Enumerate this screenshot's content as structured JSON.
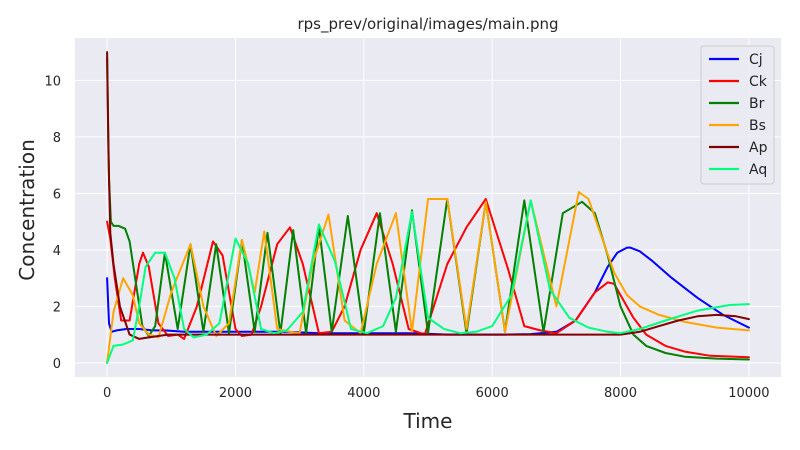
{
  "chart_data": {
    "type": "line",
    "title": "rps_prev/original/images/main.png",
    "xlabel": "Time",
    "ylabel": "Concentration",
    "xlim": [
      -500,
      10500
    ],
    "ylim": [
      -0.5,
      11.5
    ],
    "xticks": [
      0,
      2000,
      4000,
      6000,
      8000,
      10000
    ],
    "yticks": [
      0,
      2,
      4,
      6,
      8,
      10
    ],
    "grid": true,
    "legend_position": "top-right",
    "series": [
      {
        "name": "Cj",
        "color": "#0000ff",
        "x": [
          0,
          30,
          70,
          150,
          300,
          500,
          700,
          900,
          1200,
          1600,
          2000,
          2400,
          2800,
          3300,
          3800,
          4300,
          4800,
          5300,
          5800,
          6200,
          6600,
          7000,
          7300,
          7600,
          7800,
          7950,
          8100,
          8150,
          8300,
          8500,
          8800,
          9200,
          9600,
          10000
        ],
        "y": [
          3.0,
          1.4,
          1.1,
          1.15,
          1.2,
          1.2,
          1.15,
          1.15,
          1.1,
          1.1,
          1.1,
          1.1,
          1.1,
          1.05,
          1.05,
          1.05,
          1.05,
          1.0,
          1.0,
          1.0,
          1.02,
          1.1,
          1.5,
          2.5,
          3.4,
          3.9,
          4.08,
          4.08,
          3.95,
          3.6,
          3.0,
          2.3,
          1.7,
          1.25
        ]
      },
      {
        "name": "Ck",
        "color": "#ff0000",
        "x": [
          0,
          50,
          120,
          220,
          350,
          500,
          560,
          650,
          800,
          950,
          1100,
          1200,
          1400,
          1650,
          1800,
          2000,
          2100,
          2250,
          2400,
          2650,
          2850,
          3050,
          3300,
          3500,
          3700,
          3950,
          4200,
          4450,
          4700,
          4950,
          5300,
          5600,
          5900,
          6250,
          6500,
          6750,
          7000,
          7300,
          7600,
          7800,
          7900,
          8000,
          8200,
          8400,
          8700,
          9000,
          9400,
          10000
        ],
        "y": [
          5.0,
          4.4,
          3.0,
          1.5,
          1.5,
          3.5,
          3.9,
          3.4,
          1.4,
          0.95,
          1.0,
          0.85,
          2.0,
          4.3,
          3.8,
          1.2,
          0.95,
          1.0,
          2.0,
          4.2,
          4.8,
          3.5,
          1.05,
          1.1,
          2.0,
          4.0,
          5.3,
          3.5,
          1.2,
          1.0,
          3.5,
          4.8,
          5.8,
          3.3,
          1.3,
          1.15,
          1.05,
          1.5,
          2.5,
          2.85,
          2.8,
          2.4,
          1.6,
          1.0,
          0.6,
          0.4,
          0.25,
          0.2
        ]
      },
      {
        "name": "Br",
        "color": "#008000",
        "x": [
          0,
          30,
          60,
          100,
          180,
          280,
          350,
          450,
          550,
          650,
          750,
          900,
          1100,
          1300,
          1500,
          1700,
          1900,
          2100,
          2300,
          2500,
          2700,
          2900,
          3100,
          3300,
          3500,
          3750,
          4000,
          4250,
          4500,
          4750,
          5000,
          5300,
          5600,
          5900,
          6200,
          6500,
          6800,
          7100,
          7400,
          7600,
          7800,
          8000,
          8200,
          8400,
          8700,
          9000,
          9500,
          10000
        ],
        "y": [
          10.8,
          6.5,
          5.0,
          4.85,
          4.85,
          4.75,
          4.3,
          2.8,
          1.3,
          0.95,
          1.3,
          3.9,
          1.2,
          4.2,
          1.1,
          4.2,
          1.05,
          4.35,
          1.1,
          4.6,
          1.05,
          4.7,
          1.05,
          4.85,
          1.1,
          5.2,
          1.05,
          5.3,
          1.1,
          5.4,
          1.05,
          5.8,
          1.05,
          5.7,
          1.1,
          5.75,
          1.1,
          5.3,
          5.7,
          5.3,
          3.8,
          2.0,
          1.0,
          0.6,
          0.35,
          0.22,
          0.15,
          0.12
        ]
      },
      {
        "name": "Bs",
        "color": "#ffa500",
        "x": [
          0,
          100,
          250,
          400,
          500,
          650,
          800,
          1000,
          1300,
          1500,
          1700,
          1900,
          2100,
          2300,
          2450,
          2650,
          2850,
          3000,
          3200,
          3450,
          3700,
          3950,
          4200,
          4500,
          4750,
          5000,
          5300,
          5600,
          5900,
          6200,
          6600,
          7000,
          7350,
          7500,
          7700,
          7900,
          8100,
          8300,
          8600,
          9000,
          9500,
          10000
        ],
        "y": [
          0.0,
          1.8,
          3.0,
          2.4,
          1.4,
          1.0,
          0.9,
          2.5,
          4.2,
          2.0,
          0.95,
          1.4,
          4.35,
          2.5,
          4.65,
          1.2,
          1.1,
          1.05,
          3.5,
          5.25,
          1.5,
          1.05,
          3.5,
          5.3,
          1.1,
          5.8,
          5.8,
          1.2,
          5.7,
          1.1,
          5.75,
          2.0,
          6.05,
          5.8,
          4.5,
          3.2,
          2.4,
          2.0,
          1.7,
          1.45,
          1.25,
          1.15
        ]
      },
      {
        "name": "Ap",
        "color": "#800000",
        "x": [
          0,
          20,
          50,
          100,
          200,
          350,
          500,
          650,
          800,
          950,
          1100,
          1300,
          1500,
          1700,
          1900,
          2100,
          2300,
          2500,
          2700,
          2900,
          3100,
          3300,
          3500,
          3750,
          4000,
          4250,
          4500,
          4750,
          5000,
          5300,
          5600,
          5900,
          6200,
          6500,
          6800,
          7100,
          7400,
          7700,
          8000,
          8300,
          8600,
          8900,
          9200,
          9500,
          9800,
          10000
        ],
        "y": [
          11.0,
          7.5,
          4.6,
          3.5,
          2.0,
          1.0,
          0.85,
          0.9,
          0.95,
          1.0,
          1.0,
          1.0,
          1.0,
          1.0,
          1.0,
          1.0,
          1.0,
          1.0,
          1.0,
          1.0,
          1.0,
          1.0,
          1.0,
          1.0,
          1.0,
          1.0,
          1.0,
          1.0,
          1.0,
          1.0,
          1.0,
          1.0,
          1.0,
          1.0,
          1.0,
          1.0,
          1.0,
          1.0,
          1.0,
          1.1,
          1.3,
          1.5,
          1.65,
          1.7,
          1.65,
          1.55
        ]
      },
      {
        "name": "Aq",
        "color": "#00ff7f",
        "x": [
          0,
          100,
          250,
          400,
          500,
          600,
          750,
          900,
          1050,
          1200,
          1350,
          1550,
          1750,
          2000,
          2200,
          2400,
          2600,
          2800,
          3050,
          3300,
          3550,
          3800,
          4050,
          4300,
          4500,
          4750,
          5000,
          5250,
          5500,
          5750,
          6000,
          6300,
          6600,
          6900,
          7200,
          7500,
          7800,
          8000,
          8300,
          8700,
          9200,
          9700,
          10000
        ],
        "y": [
          0.0,
          0.6,
          0.65,
          0.8,
          2.0,
          3.4,
          3.9,
          3.9,
          3.0,
          1.2,
          0.9,
          1.0,
          1.4,
          4.4,
          3.5,
          1.2,
          1.05,
          1.15,
          1.8,
          4.9,
          3.6,
          1.2,
          1.05,
          1.3,
          2.3,
          5.35,
          1.6,
          1.2,
          1.05,
          1.1,
          1.3,
          2.4,
          5.75,
          2.6,
          1.6,
          1.25,
          1.1,
          1.05,
          1.2,
          1.5,
          1.85,
          2.05,
          2.08
        ]
      }
    ]
  }
}
